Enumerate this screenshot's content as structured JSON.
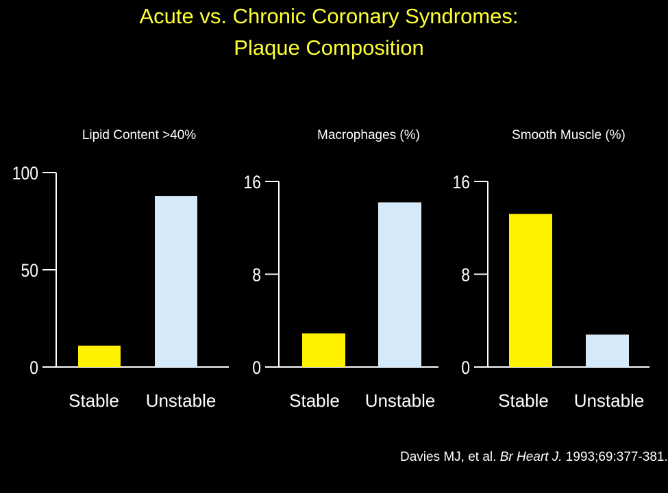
{
  "slide": {
    "title_line1": "Acute vs. Chronic Coronary Syndromes:",
    "title_line2": "Plaque Composition",
    "citation": {
      "authors": "Davies MJ, et al. ",
      "journal": "Br Heart J.",
      "details": " 1993;69:377-381."
    }
  },
  "colors": {
    "background": "#000000",
    "title": "#FFFF33",
    "stable_bar": "#FFF200",
    "unstable_bar": "#D6E9F8",
    "axis": "#FFFFFF",
    "text": "#FFFFFF"
  },
  "chart_data": [
    {
      "type": "bar",
      "title": "Lipid Content >40%",
      "categories": [
        "Stable",
        "Unstable"
      ],
      "values": [
        11,
        88
      ],
      "yticks": [
        0,
        50,
        100
      ],
      "ylim": [
        0,
        100
      ],
      "grid": false
    },
    {
      "type": "bar",
      "title": "Macrophages (%)",
      "categories": [
        "Stable",
        "Unstable"
      ],
      "values": [
        2.9,
        14.2
      ],
      "yticks": [
        0,
        8,
        16
      ],
      "ylim": [
        0,
        16
      ],
      "grid": false
    },
    {
      "type": "bar",
      "title": "Smooth Muscle (%)",
      "categories": [
        "Stable",
        "Unstable"
      ],
      "values": [
        13.2,
        2.8
      ],
      "yticks": [
        0,
        8,
        16
      ],
      "ylim": [
        0,
        16
      ],
      "grid": false
    }
  ]
}
